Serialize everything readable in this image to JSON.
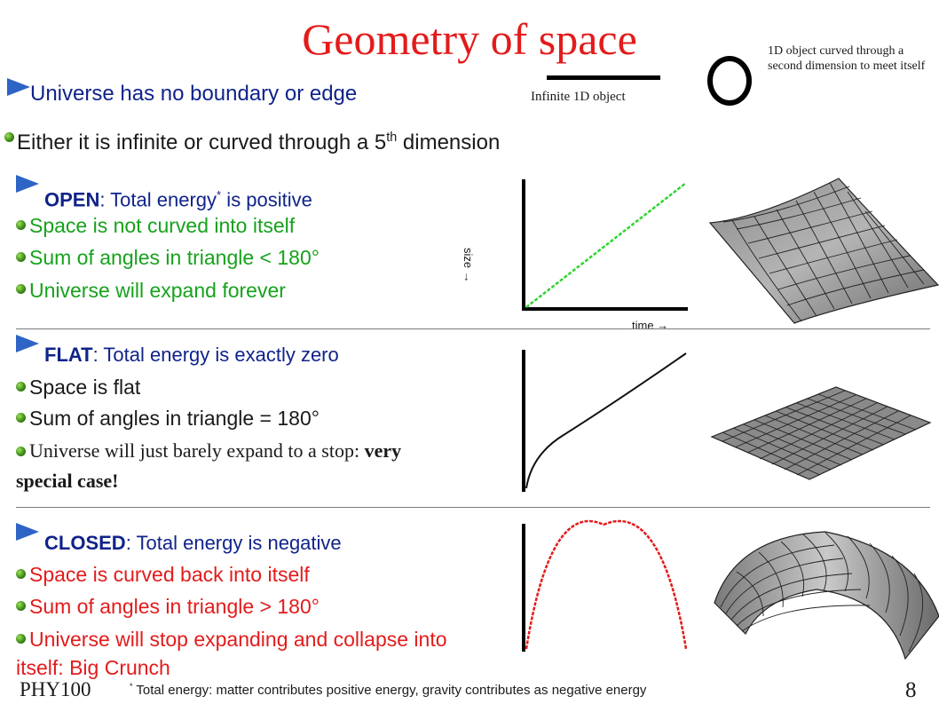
{
  "title": "Geometry of space",
  "diagram_1d": {
    "line_caption": "Infinite 1D object",
    "circle_caption": "1D object curved through a second dimension to meet itself"
  },
  "intro": {
    "point1": "Universe has no boundary or edge",
    "point2_main": "Either it is infinite or curved through a 5",
    "point2_sup": "th",
    "point2_tail": " dimension"
  },
  "open": {
    "heading_bold": "OPEN",
    "heading_rest": ": Total energy",
    "heading_sup": "*",
    "heading_tail": " is positive",
    "items": [
      "Space is not curved into itself",
      "Sum of angles in triangle < 180°",
      "Universe will expand forever"
    ],
    "graph": {
      "xlabel": "time",
      "ylabel": "size"
    }
  },
  "flat": {
    "heading_bold": "FLAT",
    "heading_rest": ": Total energy is exactly zero",
    "items": [
      "Space is flat",
      "Sum of angles in triangle = 180°"
    ],
    "item3_plain": "Universe will just barely expand to a stop: ",
    "item3_bold1": "very",
    "item3_bold2": "special case!"
  },
  "closed": {
    "heading_bold": "CLOSED",
    "heading_rest": ": Total energy is negative",
    "items": [
      "Space is curved back into itself",
      "Sum of angles in triangle > 180°"
    ],
    "item3_line1": "Universe will stop expanding and collapse into",
    "item3_line2": "itself: Big Crunch"
  },
  "footnote": {
    "marker": "*",
    "text": " Total energy: matter contributes positive energy, gravity contributes as negative energy"
  },
  "footer": {
    "course": "PHY100",
    "page_number": "8"
  },
  "colors": {
    "title": "#e31b1b",
    "open": "#16a21b",
    "flat": "#1a1a1a",
    "closed": "#e31b1b",
    "heading": "#10238a",
    "arrow": "#2d64c6"
  }
}
